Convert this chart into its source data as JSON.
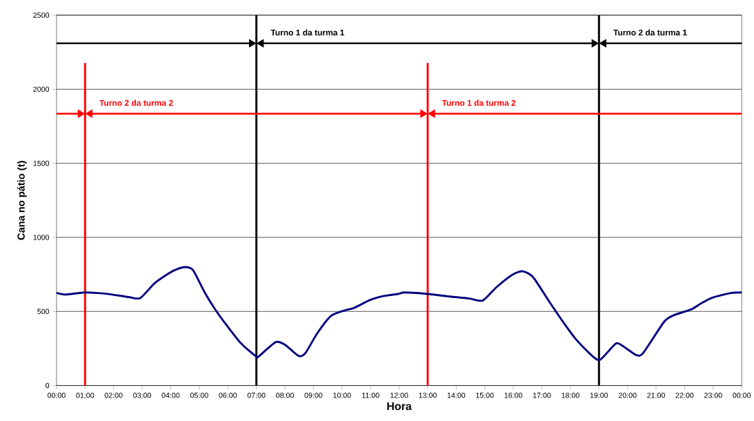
{
  "chart_data": {
    "type": "line",
    "xlabel": "Hora",
    "ylabel": "Cana no pátio (t)",
    "xlim": [
      0,
      24
    ],
    "ylim": [
      0,
      2500
    ],
    "yticks": [
      0,
      500,
      1000,
      1500,
      2000,
      2500
    ],
    "xticks": [
      {
        "value": 0,
        "label": "00:00"
      },
      {
        "value": 1,
        "label": "01:00"
      },
      {
        "value": 2,
        "label": "02:00"
      },
      {
        "value": 3,
        "label": "03:00"
      },
      {
        "value": 4,
        "label": "04:00"
      },
      {
        "value": 5,
        "label": "05:00"
      },
      {
        "value": 6,
        "label": "06:00"
      },
      {
        "value": 7,
        "label": "07:00"
      },
      {
        "value": 8,
        "label": "08:00"
      },
      {
        "value": 9,
        "label": "09:00"
      },
      {
        "value": 10,
        "label": "10:00"
      },
      {
        "value": 11,
        "label": "11:00"
      },
      {
        "value": 12,
        "label": "12:00"
      },
      {
        "value": 13,
        "label": "13:00"
      },
      {
        "value": 14,
        "label": "14:00"
      },
      {
        "value": 15,
        "label": "15:00"
      },
      {
        "value": 16,
        "label": "16:00"
      },
      {
        "value": 17,
        "label": "17:00"
      },
      {
        "value": 18,
        "label": "18:00"
      },
      {
        "value": 19,
        "label": "19:00"
      },
      {
        "value": 20,
        "label": "20:00"
      },
      {
        "value": 21,
        "label": "21:00"
      },
      {
        "value": 22,
        "label": "22:00"
      },
      {
        "value": 23,
        "label": "23:00"
      },
      {
        "value": 24,
        "label": "00:00"
      }
    ],
    "grid": "y",
    "marker": "none",
    "line_style": "solid",
    "series": [
      {
        "color": "#000080",
        "x": [
          0,
          0.31,
          0.97,
          1.47,
          1.88,
          2.53,
          2.93,
          3.41,
          3.73,
          4.14,
          4.5,
          4.78,
          5.18,
          5.58,
          5.99,
          6.47,
          6.99,
          7.07,
          7.68,
          8.0,
          8.48,
          8.72,
          9.13,
          9.61,
          10.09,
          10.41,
          10.98,
          11.46,
          11.98,
          12.18,
          12.95,
          13.79,
          14.44,
          14.92,
          15.4,
          15.97,
          16.33,
          16.69,
          17.25,
          17.74,
          18.22,
          18.78,
          19.05,
          19.59,
          19.83,
          20.31,
          20.55,
          21.28,
          21.6,
          22.24,
          22.57,
          22.97,
          23.61,
          24
        ],
        "values": [
          625,
          614,
          628,
          624,
          616,
          597,
          590,
          686,
          732,
          779,
          799,
          779,
          632,
          507,
          399,
          283,
          197,
          195,
          293,
          275,
          200,
          220,
          352,
          469,
          507,
          523,
          577,
          604,
          619,
          628,
          619,
          600,
          588,
          573,
          662,
          748,
          771,
          732,
          569,
          430,
          306,
          197,
          175,
          283,
          267,
          205,
          220,
          430,
          473,
          515,
          554,
          593,
          624,
          628
        ]
      }
    ],
    "ref_lines": [
      {
        "axis": "x",
        "value": 1,
        "color": "#ff0000"
      },
      {
        "axis": "x",
        "value": 7,
        "color": "#000000"
      },
      {
        "axis": "x",
        "value": 13,
        "color": "#ff0000"
      },
      {
        "axis": "x",
        "value": 19,
        "color": "#000000"
      }
    ],
    "annotations": [
      {
        "text": "Turno 1 da turma 1",
        "x": 7,
        "y": 2310
      },
      {
        "text": "Turno 2 da turma 1",
        "x": 19,
        "y": 2310
      },
      {
        "text": "Turno 2 da turma 2",
        "x": 1,
        "y": 1835
      },
      {
        "text": "Turno 1 da turma 2",
        "x": 13,
        "y": 1835
      }
    ]
  }
}
